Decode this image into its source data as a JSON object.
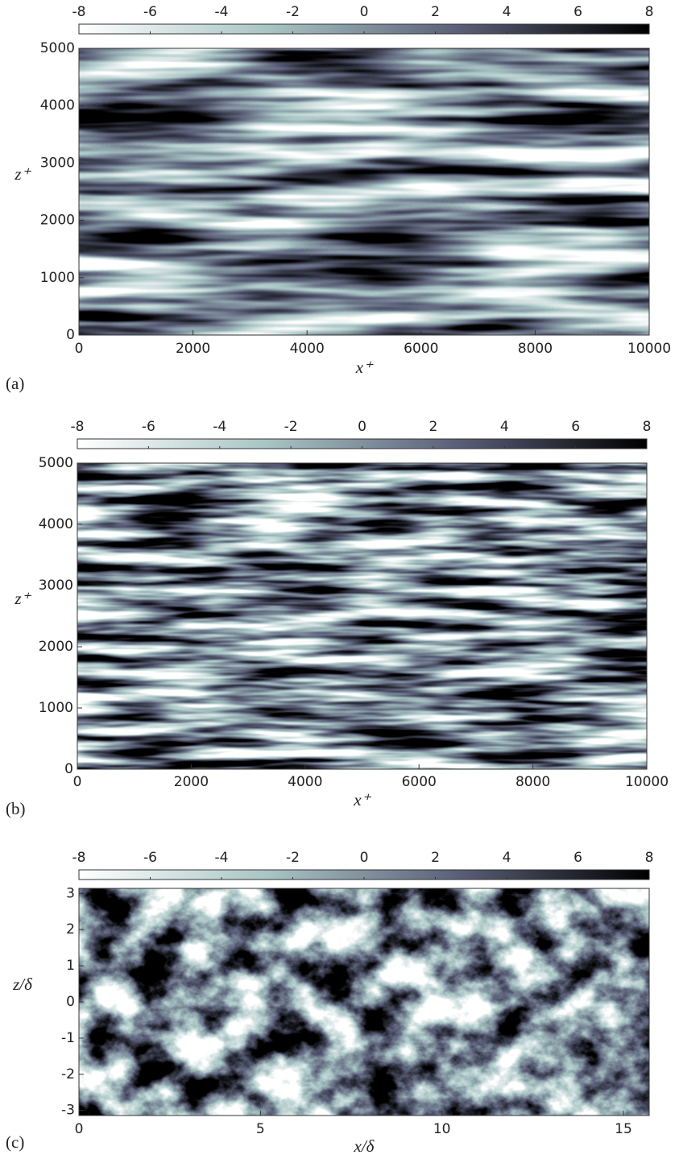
{
  "chart_data": [
    {
      "type": "heatmap",
      "panel_label": "(a)",
      "xlabel": "x⁺",
      "ylabel": "z⁺",
      "xlim": [
        0,
        10000
      ],
      "xticks": [
        0,
        2000,
        4000,
        6000,
        8000,
        10000
      ],
      "ylim": [
        0,
        5000
      ],
      "yticks": [
        0,
        1000,
        2000,
        3000,
        4000,
        5000
      ],
      "clim": [
        -8,
        8
      ],
      "cticks": [
        -8,
        -6,
        -4,
        -2,
        0,
        2,
        4,
        6,
        8
      ],
      "colormap": [
        "#ffffff",
        "#a8c4c4",
        "#5a5f78",
        "#000000"
      ]
    },
    {
      "type": "heatmap",
      "panel_label": "(b)",
      "xlabel": "x⁺",
      "ylabel": "z⁺",
      "xlim": [
        0,
        10000
      ],
      "xticks": [
        0,
        2000,
        4000,
        6000,
        8000,
        10000
      ],
      "ylim": [
        0,
        5000
      ],
      "yticks": [
        0,
        1000,
        2000,
        3000,
        4000,
        5000
      ],
      "clim": [
        -8,
        8
      ],
      "cticks": [
        -8,
        -6,
        -4,
        -2,
        0,
        2,
        4,
        6,
        8
      ],
      "colormap": [
        "#ffffff",
        "#a8c4c4",
        "#5a5f78",
        "#000000"
      ]
    },
    {
      "type": "heatmap",
      "panel_label": "(c)",
      "xlabel": "x/δ",
      "ylabel": "z/δ",
      "xlim": [
        0,
        15.71
      ],
      "xticks": [
        0,
        5,
        10,
        15
      ],
      "ylim": [
        -3.14,
        3.14
      ],
      "yticks": [
        -3,
        -2,
        -1,
        0,
        1,
        2,
        3
      ],
      "clim": [
        -8,
        8
      ],
      "cticks": [
        -8,
        -6,
        -4,
        -2,
        0,
        2,
        4,
        6,
        8
      ],
      "colormap": [
        "#ffffff",
        "#a8c4c4",
        "#5a5f78",
        "#000000"
      ]
    }
  ]
}
